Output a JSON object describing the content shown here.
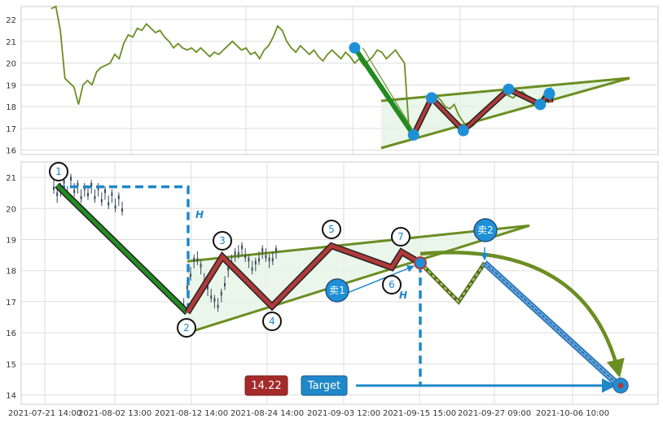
{
  "chart_data": [
    {
      "type": "line",
      "panel": "top-overview",
      "ylim": [
        15.8,
        22.6
      ],
      "yticks": [
        "16",
        "17",
        "18",
        "19",
        "20",
        "21",
        "22"
      ],
      "grid": true,
      "colors": {
        "price": "#6b8e23",
        "down_leg": "#228b22",
        "zigzag": "#b03a3a",
        "wedge_fill": "#e0f2e0",
        "marker": "#1e90d8"
      },
      "series": [
        {
          "values": [
            22.5,
            22.6,
            21.5,
            19.3,
            19.1,
            18.9,
            18.1,
            19.0,
            19.2,
            19.0,
            19.6,
            19.8,
            19.9,
            20.0,
            20.4,
            20.2,
            20.9,
            21.3,
            21.2,
            21.6,
            21.5,
            21.8,
            21.6,
            21.4,
            21.5,
            21.2,
            21.0,
            20.7,
            20.9,
            20.7,
            20.6,
            20.7,
            20.5,
            20.7,
            20.5,
            20.3,
            20.5,
            20.4,
            20.6,
            20.8,
            21.0,
            20.8,
            20.6,
            20.7,
            20.4,
            20.5,
            20.2,
            20.6,
            20.8,
            21.2,
            21.7,
            21.5,
            21.0,
            20.7,
            20.5,
            20.8,
            20.6,
            20.4,
            20.6,
            20.3,
            20.1,
            20.4,
            20.6,
            20.4,
            20.2,
            20.5,
            20.3,
            20.0,
            20.2,
            19.9,
            20.1,
            20.3,
            20.6,
            20.5,
            20.2,
            20.4,
            20.6,
            20.3,
            20.0,
            17.0,
            16.8,
            17.2,
            17.6,
            18.0,
            18.3,
            18.5,
            18.3,
            18.0,
            17.9,
            18.1,
            17.6,
            17.3,
            17.0,
            17.1,
            17.3,
            17.6,
            17.8,
            18.0,
            18.2,
            18.4,
            18.6,
            18.5,
            18.4,
            18.6,
            18.7,
            18.5,
            18.2,
            18.1,
            18.3,
            18.6,
            18.5,
            18.4
          ]
        }
      ],
      "markers": [
        {
          "i": 67,
          "y": 20.7
        },
        {
          "i": 80,
          "y": 16.7
        },
        {
          "i": 84,
          "y": 18.4
        },
        {
          "i": 91,
          "y": 16.9
        },
        {
          "i": 101,
          "y": 18.8
        },
        {
          "i": 108,
          "y": 18.1
        },
        {
          "i": 110,
          "y": 18.6
        }
      ]
    },
    {
      "type": "candlestick",
      "panel": "main-pattern",
      "ylim": [
        13.7,
        21.5
      ],
      "yticks": [
        "14",
        "15",
        "16",
        "17",
        "18",
        "19",
        "20",
        "21"
      ],
      "xticks": [
        "2021-07-21 14:00",
        "2021-08-02 13:00",
        "2021-08-12 14:00",
        "2021-08-24 14:00",
        "2021-09-03 12:00",
        "2021-09-15 15:00",
        "2021-09-27 09:00",
        "2021-10-06 10:00"
      ],
      "grid": true,
      "colors": {
        "candles": "#3a4a5a",
        "down_leg": "#228b22",
        "zigzag": "#b03a3a",
        "trend": "#6b8e23",
        "projection": "#6b8e23",
        "sell_path": "#5aa0dc",
        "guide": "#1e88c8",
        "marker": "#1e90d8",
        "tag_price": "#a52a2a",
        "tag_target": "#1e88c8"
      },
      "closes_segments": [
        {
          "start": 0,
          "values": [
            20.7,
            20.4,
            20.6,
            20.8,
            20.5,
            20.9,
            20.6,
            20.7,
            20.4,
            20.6,
            20.5,
            20.7,
            20.4,
            20.6,
            20.3,
            20.5,
            20.2,
            20.4,
            20.1,
            20.3,
            20.0
          ]
        },
        {
          "start": 38,
          "values": [
            16.9,
            17.4,
            17.9,
            18.3,
            18.4,
            18.1,
            17.7,
            17.4,
            17.2,
            17.0,
            16.9,
            17.2,
            17.6,
            18.0,
            18.3,
            18.5,
            18.6,
            18.7,
            18.5,
            18.3,
            18.1,
            18.2,
            18.4,
            18.6,
            18.5,
            18.3,
            18.4,
            18.6
          ]
        }
      ],
      "labels": [
        {
          "text": "1",
          "x": 4,
          "y": 21.2
        },
        {
          "text": "2",
          "x": 39,
          "y": 16.1
        },
        {
          "text": "3",
          "x": 47,
          "y": 19.0
        },
        {
          "text": "4",
          "x": 58,
          "y": 16.3
        },
        {
          "text": "5",
          "x": 70,
          "y": 19.4
        },
        {
          "text": "6",
          "x": 83,
          "y": 17.6
        },
        {
          "text": "7",
          "x": 85,
          "y": 19.1
        }
      ],
      "sell_markers": [
        {
          "text": "卖1",
          "x": 72,
          "y": 17.4
        },
        {
          "text": "卖2",
          "x": 104,
          "y": 19.4
        }
      ],
      "H_label": "H",
      "price_tag": "14.22",
      "target_tag": "Target",
      "target_value": 14.22
    }
  ]
}
